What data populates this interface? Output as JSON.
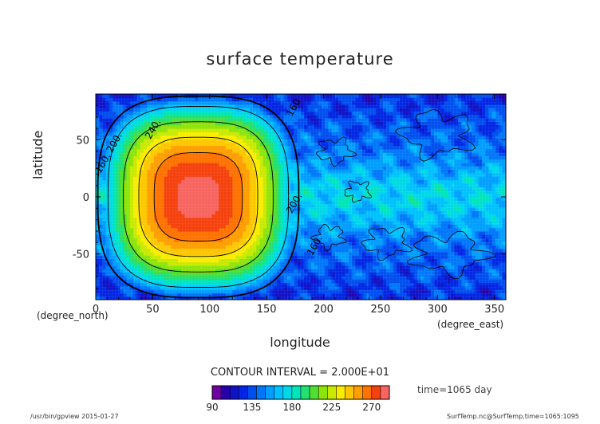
{
  "chart_data": {
    "type": "heatmap",
    "title": "surface temperature",
    "xlabel": "longitude",
    "ylabel": "latitude",
    "x_units": "(degree_east)",
    "y_units": "(degree_north)",
    "xlim": [
      0,
      360
    ],
    "ylim": [
      -90,
      90
    ],
    "x_ticks": [
      0,
      50,
      100,
      150,
      200,
      250,
      300,
      350
    ],
    "y_ticks": [
      50,
      0,
      -50
    ],
    "field": {
      "hot_region": {
        "lon_range": [
          0,
          180
        ],
        "lat_range": [
          -90,
          90
        ],
        "center_lon": 90,
        "center_lat": 0,
        "max_value": 285
      },
      "cold_region": {
        "lon_range": [
          180,
          360
        ],
        "typical_value": 150,
        "min_value": 100
      }
    },
    "contour_labels": [
      {
        "text": "160.",
        "lon": 4,
        "lat": 20
      },
      {
        "text": "200.",
        "lon": 14,
        "lat": 38
      },
      {
        "text": "240.",
        "lon": 48,
        "lat": 50
      },
      {
        "text": "160",
        "lon": 172,
        "lat": 70
      },
      {
        "text": "200.",
        "lon": 172,
        "lat": -15
      },
      {
        "text": "160.",
        "lon": 190,
        "lat": -52
      }
    ],
    "contour_interval_text": "CONTOUR INTERVAL = 2.000E+01",
    "colorbar": {
      "min": 90,
      "max": 290,
      "tick_labels": [
        "90",
        "135",
        "180",
        "225",
        "270"
      ],
      "tick_values": [
        90,
        135,
        180,
        225,
        270
      ]
    },
    "time_label": "time=1065 day"
  },
  "footer": {
    "left": "/usr/bin/gpview  2015-01-27",
    "right": "SurfTemp.nc@SurfTemp,time=1065:1095"
  }
}
